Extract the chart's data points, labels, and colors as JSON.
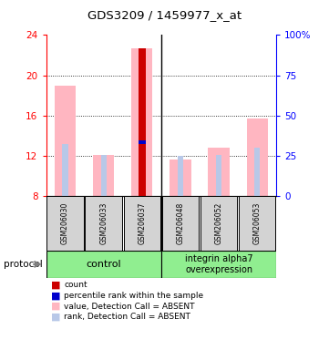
{
  "title": "GDS3209 / 1459977_x_at",
  "samples": [
    "GSM206030",
    "GSM206033",
    "GSM206037",
    "GSM206048",
    "GSM206052",
    "GSM206053"
  ],
  "ylim": [
    8,
    24
  ],
  "yticks_left": [
    8,
    12,
    16,
    20,
    24
  ],
  "yticks_right": [
    0,
    25,
    50,
    75,
    100
  ],
  "value_bars": [
    19.0,
    12.1,
    22.7,
    11.6,
    12.8,
    15.7
  ],
  "rank_bars": [
    13.2,
    12.1,
    13.2,
    12.0,
    12.1,
    12.8
  ],
  "count_val": 22.7,
  "count_idx": 2,
  "percentile_val": 13.35,
  "percentile_idx": 2,
  "value_color": "#FFB6C1",
  "rank_color": "#B8C8E8",
  "count_color": "#CC0000",
  "percentile_color": "#0000CC",
  "group_divider": 2.5,
  "ctrl_label": "control",
  "int_label": "integrin alpha7\noverexpression",
  "group_color": "#90EE90",
  "sample_box_color": "#d3d3d3",
  "plot_bg": "#ffffff",
  "legend_items": [
    {
      "color": "#CC0000",
      "label": "count"
    },
    {
      "color": "#0000CC",
      "label": "percentile rank within the sample"
    },
    {
      "color": "#FFB6C1",
      "label": "value, Detection Call = ABSENT"
    },
    {
      "color": "#B8C8E8",
      "label": "rank, Detection Call = ABSENT"
    }
  ]
}
